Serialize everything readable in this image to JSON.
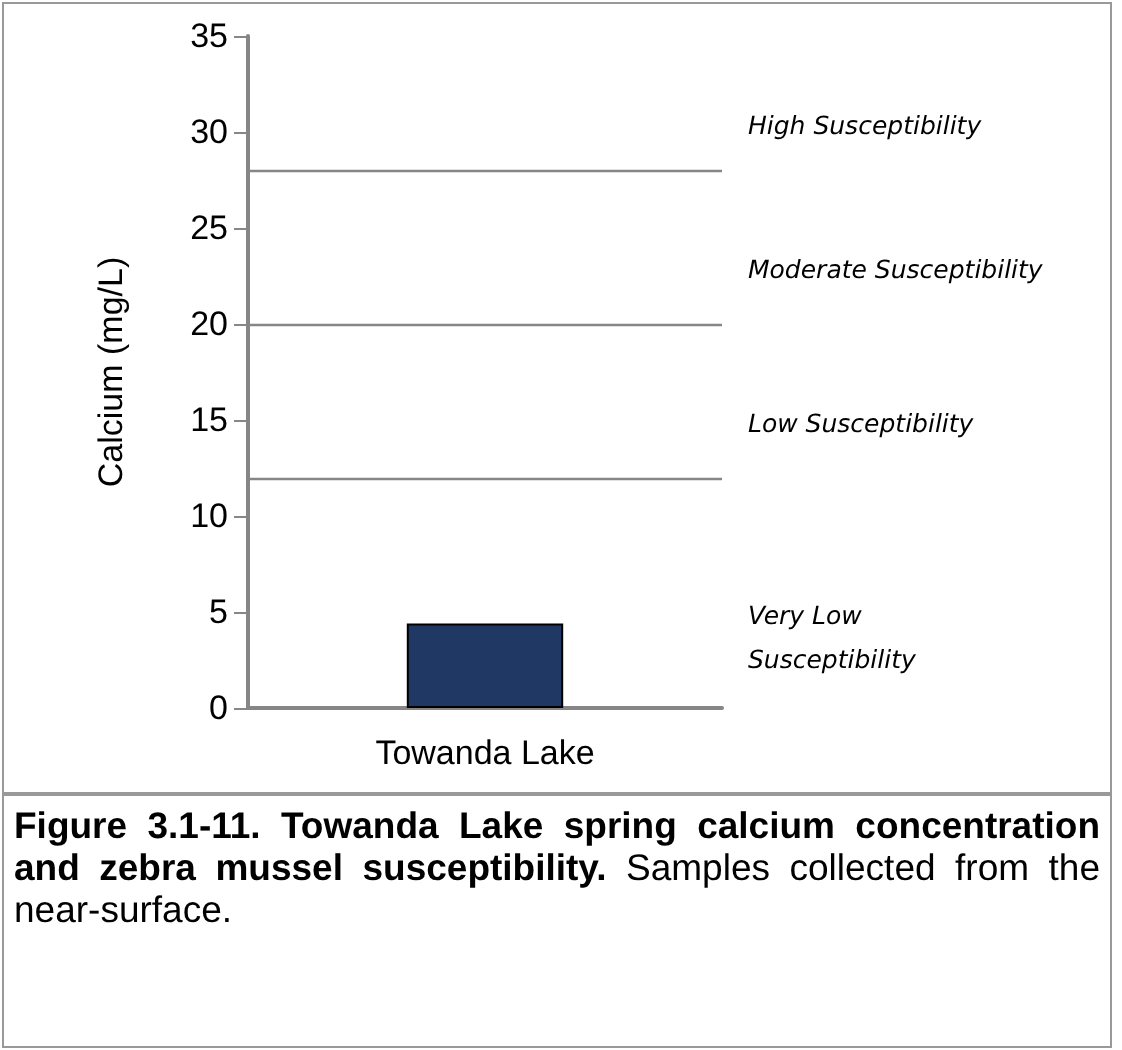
{
  "chart_data": {
    "type": "bar",
    "title": "Figure 3.1-11.  Towanda Lake spring calcium concentration and zebra mussel susceptibility.",
    "annotations": [
      "Samples collected from the near-surface.",
      "High Susceptibility",
      "Moderate Susceptibility",
      "Low Susceptibility",
      "Very Low\nSusceptibility"
    ],
    "ylabel": "Calcium (mg/L)",
    "categories": [
      "Towanda Lake"
    ],
    "values": [
      4.4
    ],
    "color": "#1f3864",
    "ylim": [
      0,
      35
    ],
    "yticks": [
      0,
      5,
      10,
      15,
      20,
      25,
      30,
      35
    ],
    "grid": false,
    "ref_lines": [
      {
        "axis": "y",
        "value": 12,
        "color": "#868686"
      },
      {
        "axis": "y",
        "value": 20,
        "color": "#868686"
      },
      {
        "axis": "y",
        "value": 28,
        "color": "#868686"
      }
    ]
  }
}
